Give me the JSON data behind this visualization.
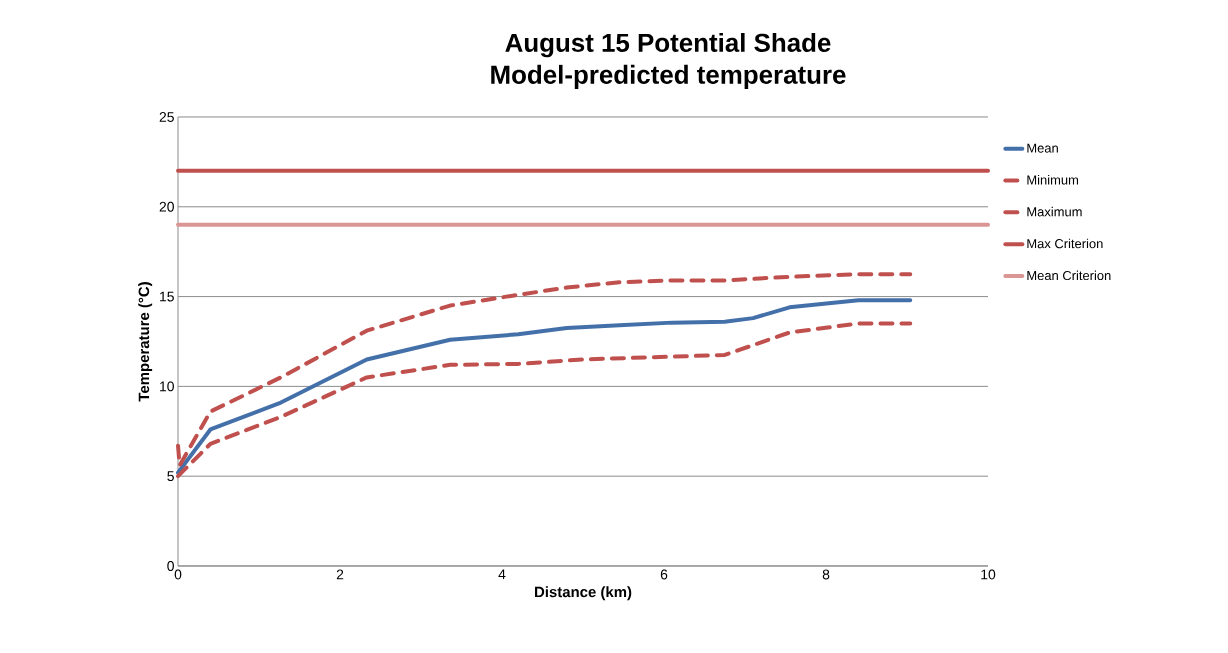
{
  "chart_data": {
    "type": "line",
    "title": "August 15 Potential Shade",
    "subtitle": "Model-predicted temperature",
    "xlabel": "Distance (km)",
    "ylabel": "Temperature (°C)",
    "xlim": [
      0,
      10
    ],
    "xticks": [
      0,
      2,
      4,
      6,
      8,
      10
    ],
    "ylim": [
      0,
      25
    ],
    "yticks": [
      0,
      5,
      10,
      15,
      20,
      25
    ],
    "grid": "y",
    "legend": "right",
    "marker": "none",
    "series": [
      {
        "name": "Mean",
        "color": "#4470aa",
        "line_style": "solid",
        "x": [
          0,
          0.4,
          1.27,
          2.33,
          3.36,
          4.2,
          4.8,
          5.45,
          6.1,
          6.75,
          7.1,
          7.55,
          8.4,
          9.04
        ],
        "values": [
          5.2,
          7.6,
          9.1,
          11.5,
          12.6,
          12.9,
          13.25,
          13.4,
          13.55,
          13.6,
          13.8,
          14.4,
          14.8,
          14.8
        ]
      },
      {
        "name": "Minimum",
        "color": "#c0504d",
        "line_style": "dashed",
        "x": [
          0,
          0.4,
          1.27,
          2.33,
          3.36,
          4.2,
          5.0,
          6.75,
          7.55,
          8.4,
          9.04
        ],
        "values": [
          5.0,
          6.8,
          8.3,
          10.5,
          11.2,
          11.25,
          11.5,
          11.75,
          13.0,
          13.5,
          13.5
        ]
      },
      {
        "name": "Maximum",
        "color": "#c0504d",
        "line_style": "dashed",
        "x": [
          0,
          0.02,
          0.4,
          1.27,
          2.33,
          3.36,
          4.2,
          4.8,
          5.45,
          6.1,
          6.75,
          7.55,
          8.4,
          9.04
        ],
        "values": [
          6.7,
          5.6,
          8.6,
          10.5,
          13.1,
          14.5,
          15.1,
          15.5,
          15.8,
          15.9,
          15.9,
          16.1,
          16.25,
          16.25
        ]
      },
      {
        "name": "Max Criterion",
        "color": "#c0504d",
        "line_style": "solid",
        "x": [
          0,
          10
        ],
        "values": [
          22,
          22
        ]
      },
      {
        "name": "Mean Criterion",
        "color": "#d99694",
        "line_style": "solid",
        "x": [
          0,
          10
        ],
        "values": [
          19,
          19
        ]
      }
    ]
  }
}
